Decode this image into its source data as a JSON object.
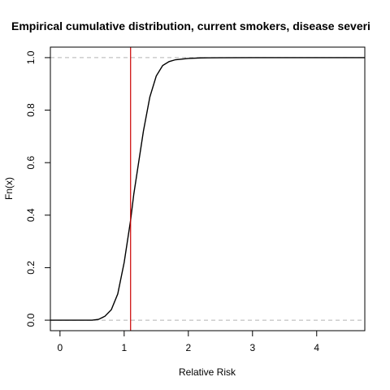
{
  "chart_data": {
    "type": "line",
    "title": "Empirical cumulative distribution, current smokers, disease severi",
    "xlabel": "Relative Risk",
    "ylabel": "Fn(x)",
    "xlim": [
      -0.15,
      4.75
    ],
    "ylim": [
      -0.04,
      1.04
    ],
    "x_ticks": [
      0,
      1,
      2,
      3,
      4
    ],
    "y_ticks": [
      0.0,
      0.2,
      0.4,
      0.6,
      0.8,
      1.0
    ],
    "x_tick_labels": [
      "0",
      "1",
      "2",
      "3",
      "4"
    ],
    "y_tick_labels": [
      "0.0",
      "0.2",
      "0.4",
      "0.6",
      "0.8",
      "1.0"
    ],
    "grid": false,
    "legend": "none",
    "reference_lines": {
      "horizontal": [
        0,
        1
      ],
      "horizontal_color": "#b3b3b3",
      "vertical": [
        1.1
      ],
      "vertical_color": "#cc0000"
    },
    "series": [
      {
        "color": "#000000",
        "x": [
          -0.15,
          0.5,
          0.6,
          0.7,
          0.8,
          0.9,
          1.0,
          1.05,
          1.1,
          1.15,
          1.2,
          1.3,
          1.4,
          1.5,
          1.6,
          1.7,
          1.8,
          2.0,
          2.2,
          2.5,
          3.0,
          3.4,
          4.75
        ],
        "y": [
          0.0,
          0.0,
          0.003,
          0.015,
          0.04,
          0.1,
          0.22,
          0.3,
          0.38,
          0.48,
          0.56,
          0.72,
          0.85,
          0.93,
          0.97,
          0.985,
          0.992,
          0.997,
          0.999,
          0.9995,
          1.0,
          1.0,
          1.0
        ]
      }
    ]
  }
}
